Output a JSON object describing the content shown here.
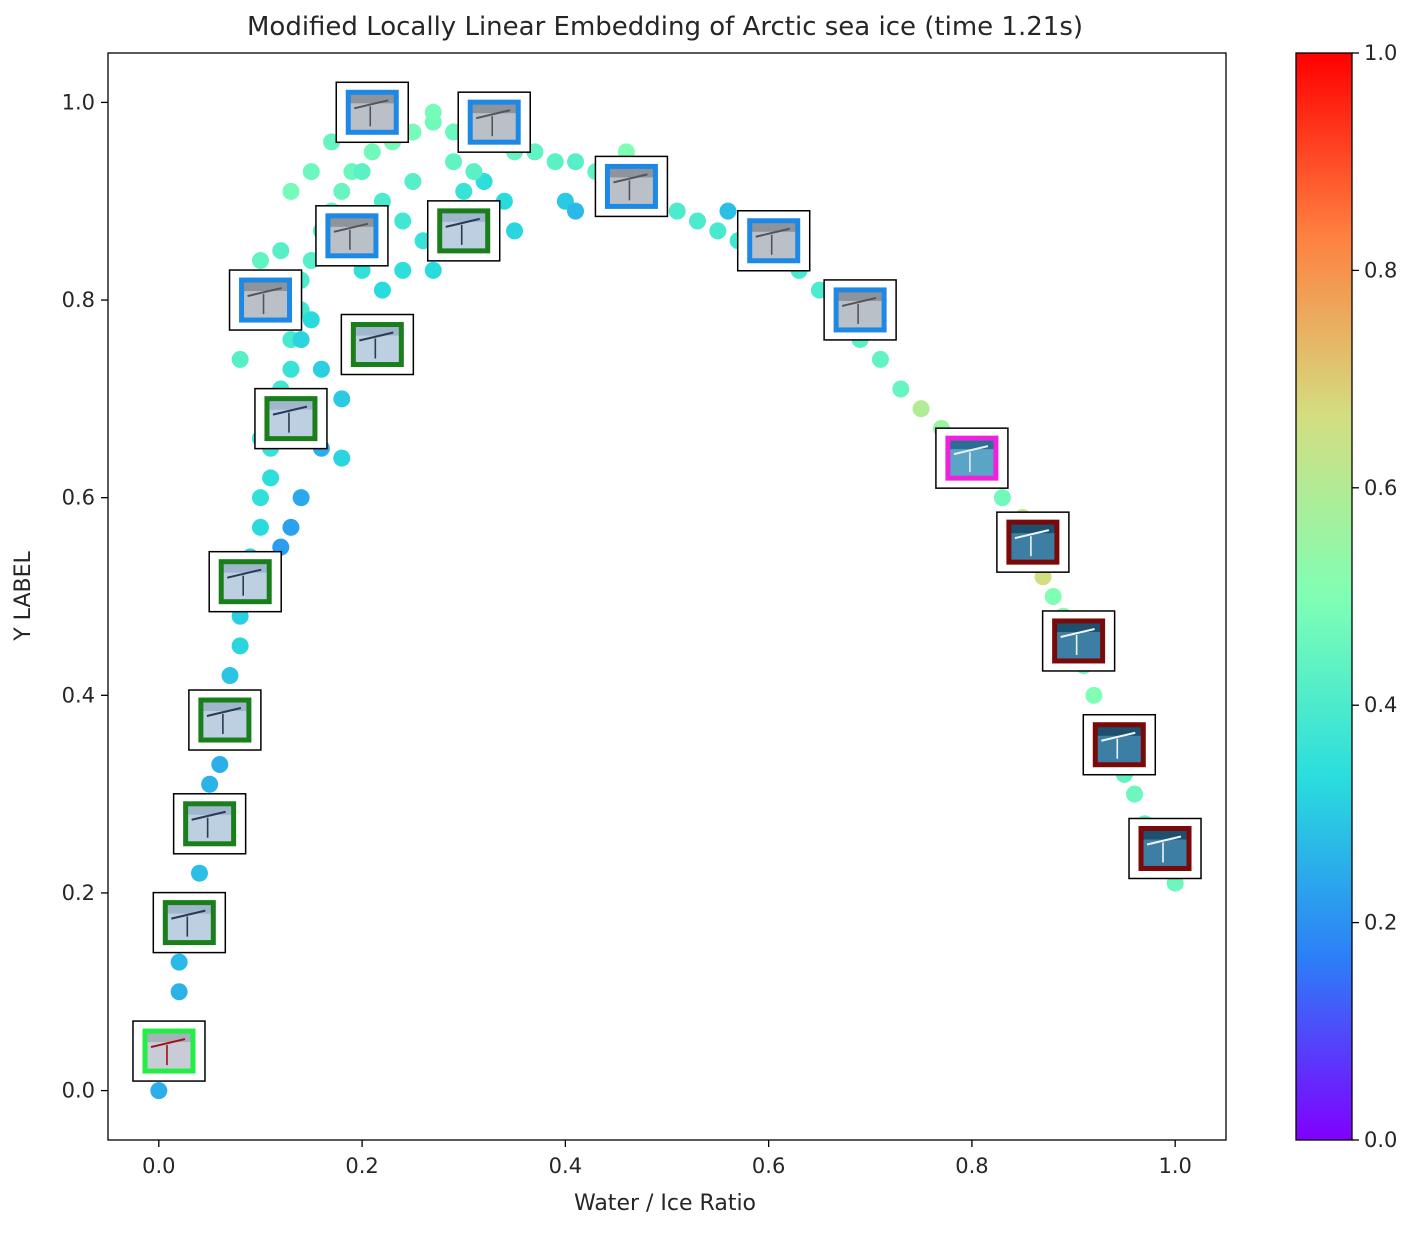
{
  "chart_data": {
    "type": "scatter",
    "title": "Modified Locally Linear Embedding of Arctic sea ice (time 1.21s)",
    "xlabel": "Water / Ice Ratio",
    "ylabel": "Y LABEL",
    "xlim": [
      -0.05,
      1.05
    ],
    "ylim": [
      -0.05,
      1.05
    ],
    "xticks": [
      "0.0",
      "0.2",
      "0.4",
      "0.6",
      "0.8",
      "1.0"
    ],
    "yticks": [
      "0.0",
      "0.2",
      "0.4",
      "0.6",
      "0.8",
      "1.0"
    ],
    "grid": false,
    "colormap": "rainbow",
    "colorbar": {
      "range": [
        0.0,
        1.0
      ],
      "ticks": [
        "0.0",
        "0.2",
        "0.4",
        "0.6",
        "0.8",
        "1.0"
      ],
      "stops": [
        "#8000ff",
        "#2c7ef7",
        "#2adddd",
        "#80ffb4",
        "#d4dd80",
        "#ff7f40",
        "#ff0000"
      ]
    },
    "points": [
      [
        0.0,
        0.0,
        0.25
      ],
      [
        0.01,
        0.06,
        0.24
      ],
      [
        0.02,
        0.1,
        0.26
      ],
      [
        0.02,
        0.13,
        0.27
      ],
      [
        0.03,
        0.16,
        0.28
      ],
      [
        0.03,
        0.19,
        0.27
      ],
      [
        0.04,
        0.22,
        0.28
      ],
      [
        0.04,
        0.25,
        0.29
      ],
      [
        0.05,
        0.28,
        0.28
      ],
      [
        0.05,
        0.31,
        0.26
      ],
      [
        0.06,
        0.33,
        0.25
      ],
      [
        0.06,
        0.36,
        0.28
      ],
      [
        0.07,
        0.39,
        0.3
      ],
      [
        0.07,
        0.42,
        0.29
      ],
      [
        0.08,
        0.45,
        0.32
      ],
      [
        0.08,
        0.48,
        0.31
      ],
      [
        0.09,
        0.51,
        0.33
      ],
      [
        0.09,
        0.54,
        0.3
      ],
      [
        0.1,
        0.57,
        0.33
      ],
      [
        0.1,
        0.6,
        0.35
      ],
      [
        0.11,
        0.62,
        0.34
      ],
      [
        0.11,
        0.65,
        0.36
      ],
      [
        0.12,
        0.68,
        0.35
      ],
      [
        0.12,
        0.71,
        0.38
      ],
      [
        0.13,
        0.73,
        0.36
      ],
      [
        0.13,
        0.76,
        0.39
      ],
      [
        0.14,
        0.79,
        0.38
      ],
      [
        0.14,
        0.82,
        0.4
      ],
      [
        0.15,
        0.84,
        0.42
      ],
      [
        0.16,
        0.87,
        0.41
      ],
      [
        0.17,
        0.89,
        0.44
      ],
      [
        0.18,
        0.91,
        0.45
      ],
      [
        0.19,
        0.93,
        0.46
      ],
      [
        0.21,
        0.95,
        0.47
      ],
      [
        0.23,
        0.96,
        0.48
      ],
      [
        0.25,
        0.97,
        0.48
      ],
      [
        0.27,
        0.98,
        0.47
      ],
      [
        0.29,
        0.97,
        0.46
      ],
      [
        0.31,
        0.96,
        0.45
      ],
      [
        0.33,
        0.96,
        0.44
      ],
      [
        0.35,
        0.95,
        0.45
      ],
      [
        0.37,
        0.95,
        0.44
      ],
      [
        0.39,
        0.94,
        0.43
      ],
      [
        0.41,
        0.94,
        0.42
      ],
      [
        0.43,
        0.93,
        0.44
      ],
      [
        0.45,
        0.92,
        0.43
      ],
      [
        0.47,
        0.91,
        0.42
      ],
      [
        0.49,
        0.9,
        0.41
      ],
      [
        0.51,
        0.89,
        0.4
      ],
      [
        0.53,
        0.88,
        0.4
      ],
      [
        0.55,
        0.87,
        0.39
      ],
      [
        0.57,
        0.86,
        0.38
      ],
      [
        0.59,
        0.85,
        0.37
      ],
      [
        0.61,
        0.84,
        0.38
      ],
      [
        0.63,
        0.83,
        0.39
      ],
      [
        0.65,
        0.81,
        0.4
      ],
      [
        0.67,
        0.79,
        0.41
      ],
      [
        0.69,
        0.76,
        0.43
      ],
      [
        0.71,
        0.74,
        0.44
      ],
      [
        0.73,
        0.71,
        0.45
      ],
      [
        0.75,
        0.69,
        0.6
      ],
      [
        0.77,
        0.67,
        0.55
      ],
      [
        0.79,
        0.65,
        0.5
      ],
      [
        0.81,
        0.63,
        0.48
      ],
      [
        0.83,
        0.6,
        0.47
      ],
      [
        0.85,
        0.58,
        0.62
      ],
      [
        0.86,
        0.55,
        0.45
      ],
      [
        0.87,
        0.52,
        0.66
      ],
      [
        0.88,
        0.5,
        0.5
      ],
      [
        0.89,
        0.48,
        0.52
      ],
      [
        0.9,
        0.45,
        0.48
      ],
      [
        0.91,
        0.43,
        0.47
      ],
      [
        0.92,
        0.4,
        0.5
      ],
      [
        0.93,
        0.37,
        0.46
      ],
      [
        0.94,
        0.35,
        0.45
      ],
      [
        0.95,
        0.32,
        0.44
      ],
      [
        0.96,
        0.3,
        0.46
      ],
      [
        0.97,
        0.27,
        0.45
      ],
      [
        0.98,
        0.25,
        0.44
      ],
      [
        0.99,
        0.23,
        0.45
      ],
      [
        1.0,
        0.21,
        0.46
      ],
      [
        0.12,
        0.85,
        0.42
      ],
      [
        0.13,
        0.91,
        0.48
      ],
      [
        0.15,
        0.93,
        0.46
      ],
      [
        0.17,
        0.96,
        0.45
      ],
      [
        0.19,
        0.97,
        0.47
      ],
      [
        0.23,
        0.99,
        0.49
      ],
      [
        0.27,
        0.99,
        0.48
      ],
      [
        0.22,
        0.9,
        0.4
      ],
      [
        0.24,
        0.88,
        0.38
      ],
      [
        0.26,
        0.86,
        0.36
      ],
      [
        0.28,
        0.89,
        0.37
      ],
      [
        0.3,
        0.91,
        0.36
      ],
      [
        0.32,
        0.92,
        0.34
      ],
      [
        0.34,
        0.9,
        0.33
      ],
      [
        0.35,
        0.87,
        0.32
      ],
      [
        0.2,
        0.83,
        0.35
      ],
      [
        0.22,
        0.81,
        0.33
      ],
      [
        0.24,
        0.83,
        0.34
      ],
      [
        0.27,
        0.83,
        0.33
      ],
      [
        0.18,
        0.7,
        0.3
      ],
      [
        0.18,
        0.64,
        0.32
      ],
      [
        0.16,
        0.65,
        0.25
      ],
      [
        0.14,
        0.6,
        0.24
      ],
      [
        0.13,
        0.57,
        0.23
      ],
      [
        0.12,
        0.55,
        0.22
      ],
      [
        0.4,
        0.9,
        0.3
      ],
      [
        0.41,
        0.89,
        0.27
      ],
      [
        0.56,
        0.89,
        0.28
      ],
      [
        0.58,
        0.87,
        0.3
      ],
      [
        0.46,
        0.95,
        0.5
      ],
      [
        0.08,
        0.74,
        0.42
      ],
      [
        0.09,
        0.78,
        0.4
      ],
      [
        0.1,
        0.84,
        0.44
      ],
      [
        0.11,
        0.81,
        0.41
      ],
      [
        0.13,
        0.67,
        0.34
      ],
      [
        0.2,
        0.93,
        0.43
      ],
      [
        0.21,
        0.87,
        0.41
      ],
      [
        0.25,
        0.92,
        0.42
      ],
      [
        0.29,
        0.94,
        0.44
      ],
      [
        0.31,
        0.93,
        0.43
      ],
      [
        0.14,
        0.76,
        0.32
      ],
      [
        0.15,
        0.78,
        0.33
      ],
      [
        0.16,
        0.73,
        0.31
      ],
      [
        0.1,
        0.66,
        0.37
      ],
      [
        0.11,
        0.7,
        0.39
      ]
    ],
    "thumbnails": [
      {
        "x": 0.01,
        "y": 0.04,
        "frame": "#22ee44",
        "style": "ice-red"
      },
      {
        "x": 0.03,
        "y": 0.17,
        "frame": "#1a7f1a",
        "style": "ice-light"
      },
      {
        "x": 0.05,
        "y": 0.27,
        "frame": "#1a7f1a",
        "style": "ice-light"
      },
      {
        "x": 0.065,
        "y": 0.375,
        "frame": "#1a7f1a",
        "style": "ice-light"
      },
      {
        "x": 0.085,
        "y": 0.515,
        "frame": "#1a7f1a",
        "style": "ice-light"
      },
      {
        "x": 0.13,
        "y": 0.68,
        "frame": "#1a7f1a",
        "style": "ice-light"
      },
      {
        "x": 0.105,
        "y": 0.8,
        "frame": "#1e88e5",
        "style": "ice-gray"
      },
      {
        "x": 0.215,
        "y": 0.755,
        "frame": "#1a7f1a",
        "style": "ice-light"
      },
      {
        "x": 0.19,
        "y": 0.865,
        "frame": "#1e88e5",
        "style": "ice-gray"
      },
      {
        "x": 0.3,
        "y": 0.87,
        "frame": "#1a7f1a",
        "style": "ice-light"
      },
      {
        "x": 0.21,
        "y": 0.99,
        "frame": "#1e88e5",
        "style": "ice-gray"
      },
      {
        "x": 0.33,
        "y": 0.98,
        "frame": "#1e88e5",
        "style": "ice-gray"
      },
      {
        "x": 0.465,
        "y": 0.915,
        "frame": "#1e88e5",
        "style": "ice-gray"
      },
      {
        "x": 0.605,
        "y": 0.86,
        "frame": "#1e88e5",
        "style": "ice-gray"
      },
      {
        "x": 0.69,
        "y": 0.79,
        "frame": "#1e88e5",
        "style": "ice-gray"
      },
      {
        "x": 0.8,
        "y": 0.64,
        "frame": "#ee22dd",
        "style": "water-light"
      },
      {
        "x": 0.86,
        "y": 0.555,
        "frame": "#7a0a0a",
        "style": "water-dark"
      },
      {
        "x": 0.905,
        "y": 0.455,
        "frame": "#7a0a0a",
        "style": "water-dark"
      },
      {
        "x": 0.945,
        "y": 0.35,
        "frame": "#7a0a0a",
        "style": "water-dark"
      },
      {
        "x": 0.99,
        "y": 0.245,
        "frame": "#7a0a0a",
        "style": "water-dark"
      }
    ]
  }
}
